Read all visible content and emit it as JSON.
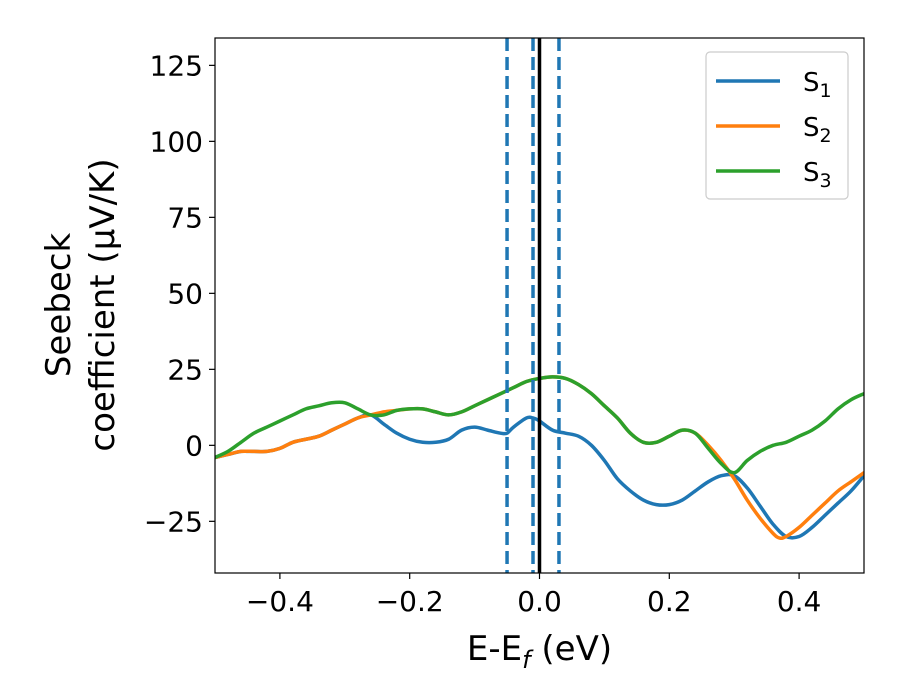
{
  "chart_data": {
    "type": "line",
    "title": "",
    "xlabel": "E-E_f (eV)",
    "xlabel_main": "E-E",
    "xlabel_sub": "f",
    "xlabel_unit": " (eV)",
    "ylabel": "Seebeck coefficient (μV/K)",
    "ylabel_line1": "Seebeck",
    "ylabel_line2": "coefficient  (μV/K)",
    "xlim": [
      -0.5,
      0.5
    ],
    "ylim": [
      -42,
      134
    ],
    "xticks": [
      -0.4,
      -0.2,
      0.0,
      0.2,
      0.4
    ],
    "xtick_labels": [
      "−0.4",
      "−0.2",
      "0.0",
      "0.2",
      "0.4"
    ],
    "yticks": [
      -25,
      0,
      25,
      50,
      75,
      100,
      125
    ],
    "ytick_labels": [
      "−25",
      "0",
      "25",
      "50",
      "75",
      "100",
      "125"
    ],
    "grid": false,
    "legend_position": "top-right",
    "series": [
      {
        "name": "S1",
        "legend_main": "S",
        "legend_sub": "1",
        "color": "#1f77b4",
        "x": [
          -0.5,
          -0.48,
          -0.46,
          -0.45,
          -0.44,
          -0.42,
          -0.4,
          -0.38,
          -0.36,
          -0.34,
          -0.32,
          -0.3,
          -0.28,
          -0.26,
          -0.24,
          -0.22,
          -0.2,
          -0.18,
          -0.16,
          -0.14,
          -0.12,
          -0.1,
          -0.08,
          -0.06,
          -0.05,
          -0.04,
          -0.02,
          -0.01,
          0.0,
          0.02,
          0.04,
          0.06,
          0.08,
          0.1,
          0.12,
          0.14,
          0.16,
          0.18,
          0.2,
          0.22,
          0.24,
          0.26,
          0.28,
          0.3,
          0.32,
          0.34,
          0.36,
          0.38,
          0.4,
          0.42,
          0.44,
          0.46,
          0.48,
          0.5
        ],
        "y": [
          -4,
          -3,
          -2,
          -2,
          -2,
          -2,
          -1,
          1,
          2,
          3,
          5,
          7,
          9,
          10,
          7,
          4,
          2,
          1,
          1,
          2,
          5,
          6,
          5,
          4,
          4,
          6,
          9,
          9,
          8,
          5,
          4,
          3,
          0,
          -5,
          -11,
          -15,
          -18,
          -19.5,
          -19.5,
          -18,
          -15,
          -12,
          -10,
          -10,
          -14,
          -20,
          -26,
          -30,
          -30,
          -27,
          -23,
          -19,
          -15,
          -10
        ]
      },
      {
        "name": "S2",
        "legend_main": "S",
        "legend_sub": "2",
        "color": "#ff7f0e",
        "x": [
          -0.5,
          -0.48,
          -0.46,
          -0.44,
          -0.42,
          -0.4,
          -0.38,
          -0.36,
          -0.34,
          -0.32,
          -0.3,
          -0.28,
          -0.26,
          -0.24,
          -0.22,
          -0.2,
          -0.18,
          -0.16,
          -0.14,
          -0.12,
          -0.1,
          -0.08,
          -0.06,
          -0.04,
          -0.02,
          0.0,
          0.02,
          0.04,
          0.06,
          0.08,
          0.1,
          0.12,
          0.14,
          0.16,
          0.18,
          0.2,
          0.22,
          0.24,
          0.26,
          0.28,
          0.3,
          0.32,
          0.34,
          0.36,
          0.37,
          0.38,
          0.4,
          0.42,
          0.44,
          0.46,
          0.48,
          0.5
        ],
        "y": [
          -4,
          -3,
          -2,
          -2,
          -2,
          -1,
          1,
          2,
          3,
          5,
          7,
          9,
          10,
          11,
          11.5,
          12,
          12,
          11,
          10,
          11,
          13,
          15,
          17,
          19,
          21,
          22,
          22.5,
          22,
          20,
          17,
          13,
          9,
          4,
          1,
          1,
          3,
          5,
          4,
          0,
          -5,
          -11,
          -18,
          -24,
          -29,
          -30.5,
          -30,
          -27,
          -23,
          -19,
          -15,
          -12,
          -9
        ]
      },
      {
        "name": "S3",
        "legend_main": "S",
        "legend_sub": "3",
        "color": "#2ca02c",
        "x": [
          -0.5,
          -0.48,
          -0.46,
          -0.44,
          -0.42,
          -0.4,
          -0.38,
          -0.36,
          -0.34,
          -0.32,
          -0.3,
          -0.28,
          -0.26,
          -0.24,
          -0.22,
          -0.2,
          -0.18,
          -0.16,
          -0.14,
          -0.12,
          -0.1,
          -0.08,
          -0.06,
          -0.04,
          -0.02,
          0.0,
          0.02,
          0.04,
          0.06,
          0.08,
          0.1,
          0.12,
          0.14,
          0.16,
          0.18,
          0.2,
          0.22,
          0.24,
          0.26,
          0.28,
          0.3,
          0.32,
          0.34,
          0.36,
          0.38,
          0.4,
          0.42,
          0.44,
          0.46,
          0.48,
          0.5
        ],
        "y": [
          -4,
          -2,
          1,
          4,
          6,
          8,
          10,
          12,
          13,
          14,
          14,
          12,
          10,
          10,
          11.5,
          12,
          12,
          11,
          10,
          11,
          13,
          15,
          17,
          19,
          21,
          22,
          22.5,
          22,
          20,
          17,
          13,
          9,
          4,
          1,
          1,
          3,
          5,
          4,
          -1,
          -6,
          -9,
          -5,
          -2,
          0,
          1,
          3,
          5,
          8,
          12,
          15,
          17
        ]
      }
    ],
    "vlines": [
      {
        "x": -0.05,
        "style": "dashed",
        "color": "#1f77b4"
      },
      {
        "x": -0.01,
        "style": "dashed",
        "color": "#1f77b4"
      },
      {
        "x": 0.0,
        "style": "solid",
        "color": "#000000"
      },
      {
        "x": 0.03,
        "style": "dashed",
        "color": "#1f77b4"
      }
    ]
  }
}
